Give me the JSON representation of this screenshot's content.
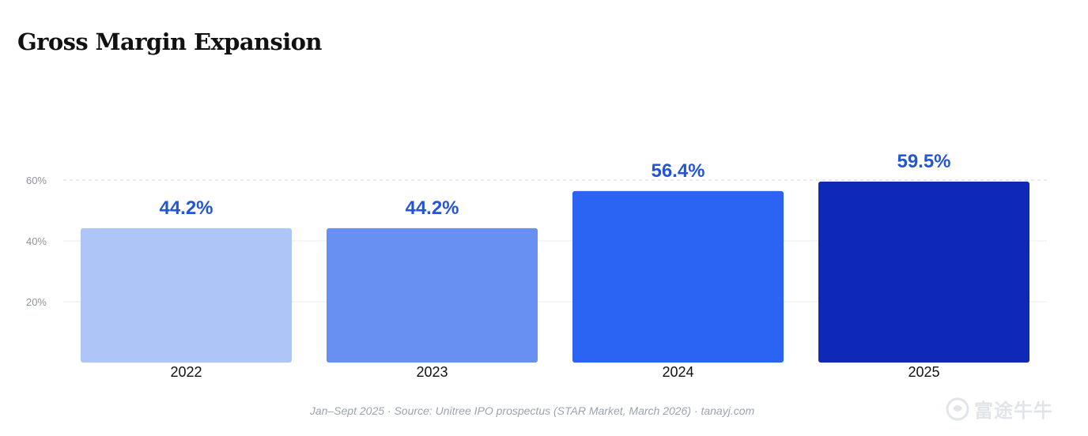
{
  "chart_data": {
    "type": "bar",
    "title": "Gross Margin Expansion",
    "categories": [
      "2022",
      "2023",
      "2024",
      "2025"
    ],
    "values": [
      44.2,
      44.2,
      56.4,
      59.5
    ],
    "value_labels": [
      "44.2%",
      "44.2%",
      "56.4%",
      "59.5%"
    ],
    "bar_colors": [
      "#aec5f7",
      "#6890f3",
      "#2b64f2",
      "#0e29b8"
    ],
    "value_label_color": "#2356d6",
    "yticks": [
      20,
      40,
      60
    ],
    "ytick_labels": [
      "20%",
      "40%",
      "60%"
    ],
    "ylim": [
      0,
      60
    ],
    "grid": true,
    "legend": "none",
    "xlabel": "",
    "ylabel": ""
  },
  "footer": "Jan–Sept 2025  ·  Source: Unitree IPO prospectus (STAR Market, March 2026)  ·  tanayj.com",
  "watermark": {
    "text": "富途牛牛",
    "icon": "futu-logo-icon"
  }
}
